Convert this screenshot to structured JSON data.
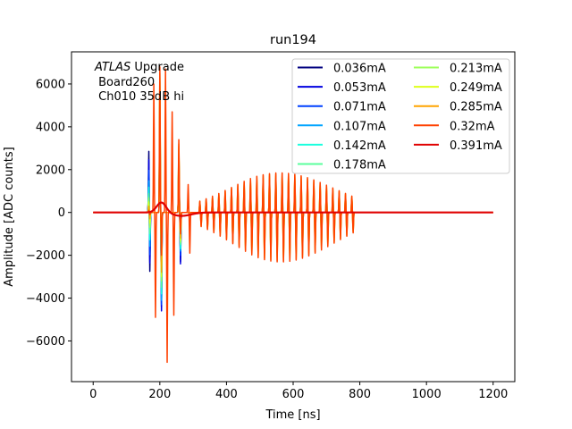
{
  "chart_data": {
    "type": "line",
    "title": "run194",
    "xlabel": "Time [ns]",
    "ylabel": "Amplitude [ADC counts]",
    "xlim": [
      -65,
      1265
    ],
    "ylim": [
      -7900,
      7500
    ],
    "xticks": [
      0,
      200,
      400,
      600,
      800,
      1000,
      1200
    ],
    "yticks": [
      -6000,
      -4000,
      -2000,
      0,
      2000,
      4000,
      6000
    ],
    "xtick_labels": [
      "0",
      "200",
      "400",
      "600",
      "800",
      "1000",
      "1200"
    ],
    "ytick_labels": [
      "−6000",
      "−4000",
      "−2000",
      "0",
      "2000",
      "4000",
      "6000"
    ],
    "grid": false,
    "legend_position": "upper-right",
    "legend_columns": 2,
    "annotation": {
      "line1_italic": "ATLAS",
      "line1_rest": " Upgrade",
      "line2": " Board260",
      "line3": " Ch010 35dB hi"
    },
    "series": [
      {
        "name": "0.036mA",
        "color": "#00007f",
        "tail_amp": 0,
        "spikes": [
          [
            167,
            2900
          ],
          [
            170,
            -2800
          ],
          [
            200,
            4800
          ],
          [
            205,
            -4400
          ],
          [
            257,
            2600
          ],
          [
            262,
            -2300
          ]
        ]
      },
      {
        "name": "0.053mA",
        "color": "#0000e0",
        "tail_amp": 0,
        "spikes": [
          [
            167,
            2500
          ],
          [
            170,
            -2400
          ],
          [
            200,
            4600
          ],
          [
            205,
            -4600
          ],
          [
            257,
            2400
          ],
          [
            262,
            -2400
          ]
        ]
      },
      {
        "name": "0.071mA",
        "color": "#0040ff",
        "tail_amp": 200,
        "spikes": [
          [
            167,
            2000
          ],
          [
            170,
            -2000
          ],
          [
            200,
            5000
          ],
          [
            205,
            -4300
          ],
          [
            257,
            2200
          ],
          [
            262,
            -2000
          ]
        ]
      },
      {
        "name": "0.107mA",
        "color": "#00a4ff",
        "tail_amp": 1100,
        "spikes": [
          [
            167,
            1500
          ],
          [
            170,
            -1600
          ],
          [
            200,
            5400
          ],
          [
            205,
            -4100
          ],
          [
            257,
            2500
          ],
          [
            262,
            -1800
          ]
        ]
      },
      {
        "name": "0.142mA",
        "color": "#19ffde",
        "tail_amp": 1300,
        "spikes": [
          [
            167,
            1200
          ],
          [
            170,
            -1300
          ],
          [
            200,
            5600
          ],
          [
            205,
            -3800
          ],
          [
            257,
            2700
          ],
          [
            262,
            -1700
          ]
        ]
      },
      {
        "name": "0.178mA",
        "color": "#5aff9c",
        "tail_amp": 1500,
        "spikes": [
          [
            167,
            900
          ],
          [
            170,
            -1000
          ],
          [
            200,
            5800
          ],
          [
            205,
            -3500
          ],
          [
            257,
            2900
          ],
          [
            262,
            -1500
          ]
        ]
      },
      {
        "name": "0.213mA",
        "color": "#9cff5a",
        "tail_amp": 1600,
        "spikes": [
          [
            167,
            700
          ],
          [
            170,
            -700
          ],
          [
            200,
            6100
          ],
          [
            205,
            -3200
          ],
          [
            257,
            3000
          ],
          [
            262,
            -1400
          ]
        ]
      },
      {
        "name": "0.249mA",
        "color": "#deff19",
        "tail_amp": 1700,
        "spikes": [
          [
            167,
            500
          ],
          [
            170,
            -500
          ],
          [
            200,
            6300
          ],
          [
            205,
            -3000
          ],
          [
            257,
            3100
          ],
          [
            262,
            -1300
          ]
        ]
      },
      {
        "name": "0.285mA",
        "color": "#ffa400",
        "tail_amp": 1800,
        "spikes": [
          [
            167,
            300
          ],
          [
            170,
            -300
          ],
          [
            200,
            6500
          ],
          [
            205,
            -2800
          ],
          [
            257,
            3200
          ],
          [
            262,
            -1200
          ]
        ]
      },
      {
        "name": "0.32mA",
        "color": "#ff4000",
        "tail_amp": 1850,
        "spikes": [
          [
            167,
            100
          ],
          [
            170,
            -100
          ],
          [
            182,
            6000
          ],
          [
            187,
            -4900
          ],
          [
            200,
            6800
          ],
          [
            205,
            -2000
          ],
          [
            217,
            6700
          ],
          [
            222,
            -7000
          ],
          [
            237,
            4700
          ],
          [
            242,
            -4800
          ],
          [
            257,
            3400
          ],
          [
            262,
            -1000
          ],
          [
            285,
            1300
          ],
          [
            290,
            -1900
          ]
        ]
      },
      {
        "name": "0.391mA",
        "color": "#e00000",
        "tail_amp": 0,
        "spikes": []
      }
    ]
  }
}
